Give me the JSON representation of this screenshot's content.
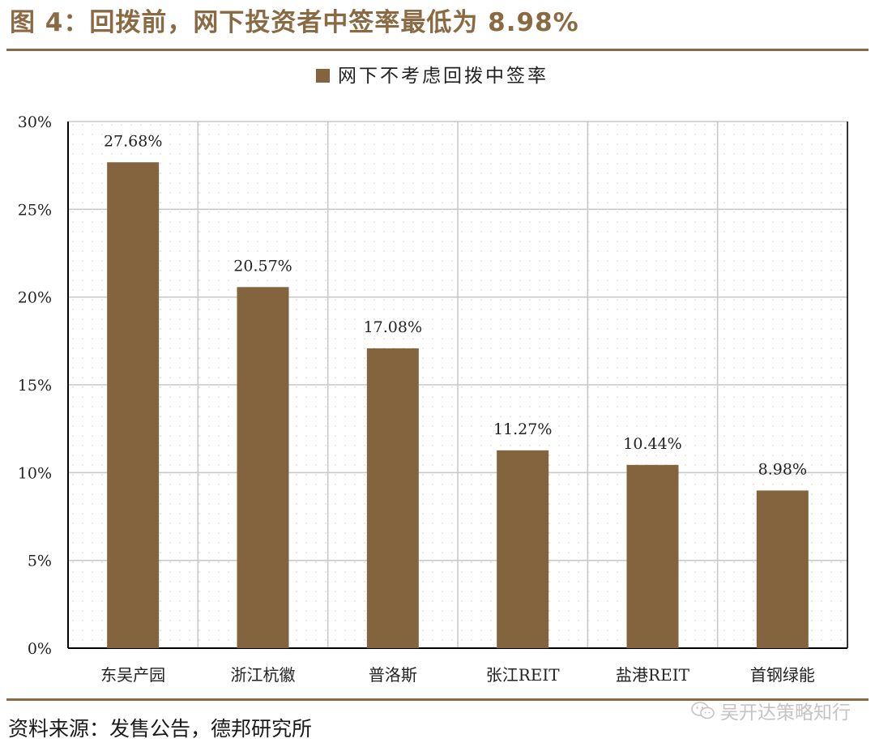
{
  "figure": {
    "title": "图 4：回拨前，网下投资者中签率最低为 8.98%",
    "source": "资料来源：发售公告，德邦研究所",
    "watermark": "吴开达策略知行",
    "watermark_icon": "wechat-icon"
  },
  "colors": {
    "bar": "#84633f",
    "title": "#8a6a43",
    "rule": "#8a6a43",
    "grid": "#c8c8c8",
    "axis": "#000000",
    "text": "#222222"
  },
  "chart_data": {
    "type": "bar",
    "categories": [
      "东吴产园",
      "浙江杭徽",
      "普洛斯",
      "张江REIT",
      "盐港REIT",
      "首钢绿能"
    ],
    "series": [
      {
        "name": "网下不考虑回拨中签率",
        "values": [
          27.68,
          20.57,
          17.08,
          11.27,
          10.44,
          8.98
        ]
      }
    ],
    "data_labels": [
      "27.68%",
      "20.57%",
      "17.08%",
      "11.27%",
      "10.44%",
      "8.98%"
    ],
    "ylim": [
      0,
      30
    ],
    "yticks": [
      0,
      5,
      10,
      15,
      20,
      25,
      30
    ],
    "ytick_labels": [
      "0%",
      "5%",
      "10%",
      "15%",
      "20%",
      "25%",
      "30%"
    ],
    "xlabel": "",
    "ylabel": "",
    "grid": true,
    "legend_position": "top-center"
  }
}
